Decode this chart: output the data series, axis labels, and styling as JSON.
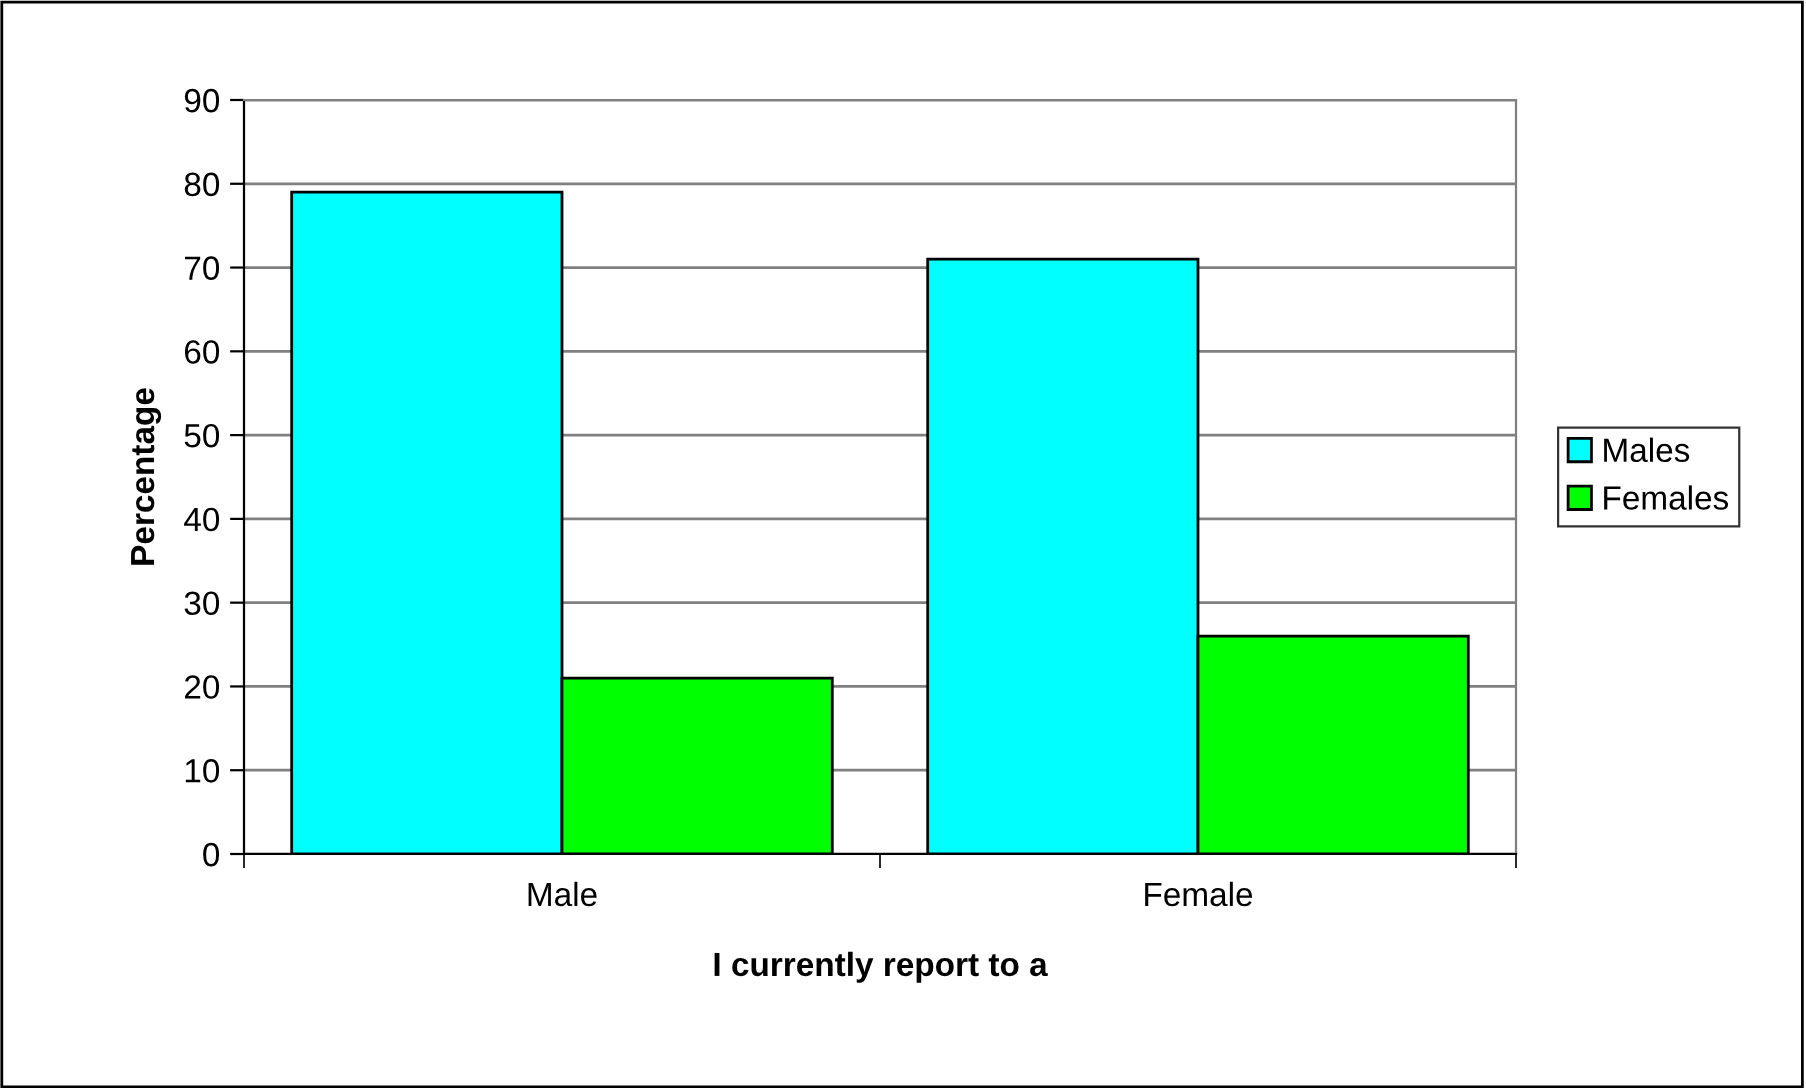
{
  "chart_data": {
    "type": "bar",
    "xlabel": "I currently report to a",
    "ylabel": "Percentage",
    "categories": [
      "Male",
      "Female"
    ],
    "series": [
      {
        "name": "Males",
        "color": "#00ffff",
        "values": [
          79,
          71
        ]
      },
      {
        "name": "Females",
        "color": "#00ff00",
        "values": [
          21,
          26
        ]
      }
    ],
    "ylim": [
      0,
      90
    ],
    "yticks": [
      0,
      10,
      20,
      30,
      40,
      50,
      60,
      70,
      80,
      90
    ],
    "grid": "y",
    "legend": "right"
  }
}
